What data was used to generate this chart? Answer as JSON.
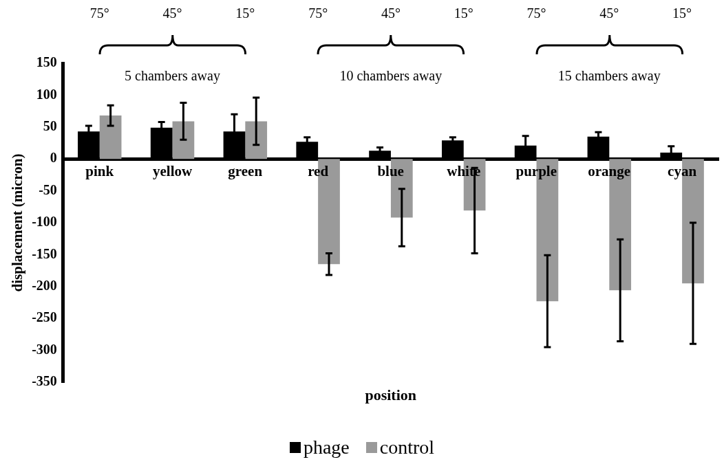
{
  "chart_data": {
    "type": "bar",
    "xlabel": "position",
    "ylabel": "displacement (micron)",
    "categories": [
      "pink",
      "yellow",
      "green",
      "red",
      "blue",
      "white",
      "purple",
      "orange",
      "cyan"
    ],
    "series": [
      {
        "name": "phage",
        "color": "#000000",
        "values": [
          43,
          49,
          43,
          27,
          13,
          29,
          21,
          35,
          10
        ],
        "errors": [
          9,
          9,
          27,
          7,
          5,
          5,
          15,
          7,
          10
        ]
      },
      {
        "name": "control",
        "color": "#9a9a9a",
        "values": [
          68,
          59,
          59,
          -165,
          -92,
          -81,
          -223,
          -206,
          -195
        ],
        "errors": [
          16,
          29,
          37,
          17,
          45,
          67,
          72,
          80,
          95
        ]
      }
    ],
    "ylim": [
      -350,
      150
    ],
    "yticks": [
      -350,
      -300,
      -250,
      -200,
      -150,
      -100,
      -50,
      0,
      50,
      100,
      150
    ],
    "legend": "bottom",
    "annotations": [
      "75°",
      "45°",
      "15°",
      "75°",
      "45°",
      "15°",
      "75°",
      "45°",
      "15°",
      "5 chambers away",
      "10 chambers away",
      "15 chambers away"
    ]
  }
}
